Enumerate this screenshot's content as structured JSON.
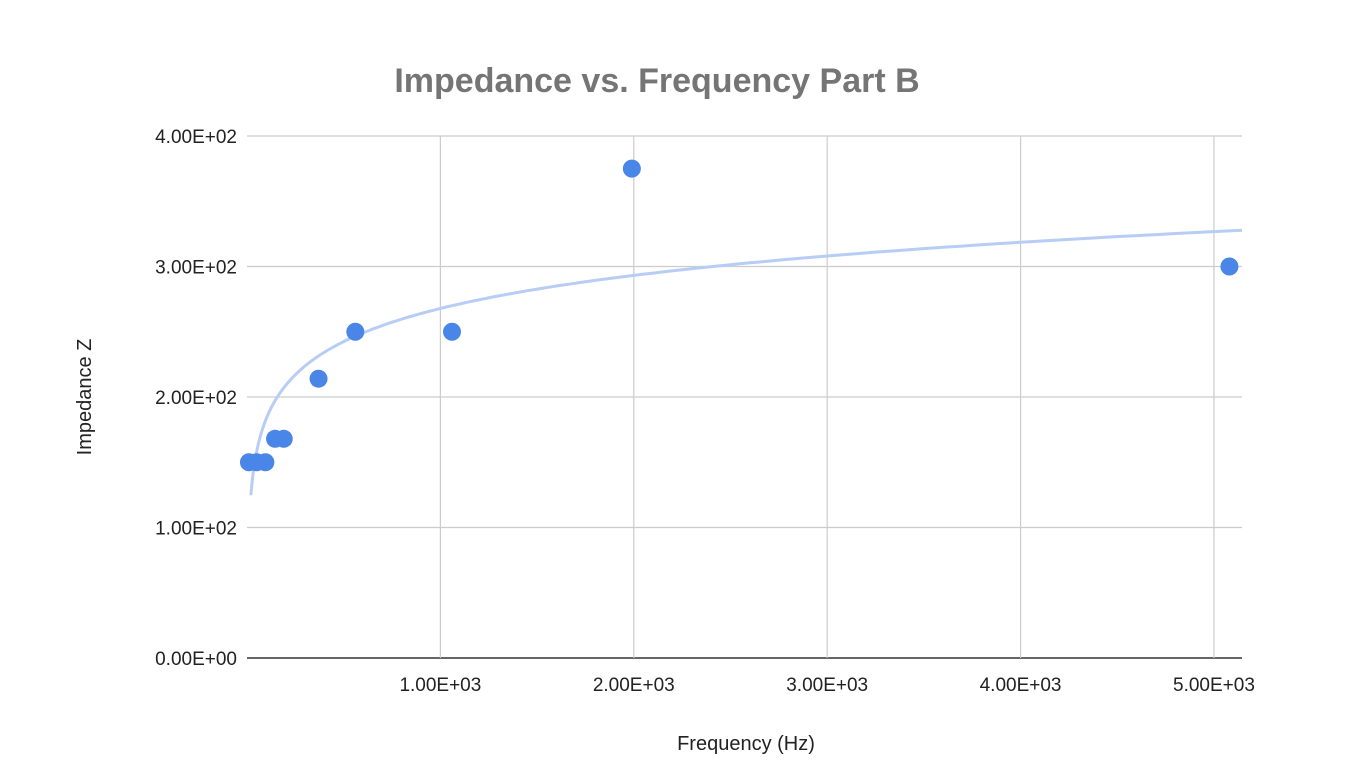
{
  "chart_data": {
    "type": "scatter",
    "title": "Impedance vs. Frequency Part B",
    "xlabel": "Frequency (Hz)",
    "ylabel": "Impedance Z",
    "xlim": [
      0,
      5145
    ],
    "ylim": [
      0,
      400
    ],
    "grid": true,
    "xticks": [
      {
        "v": 1000,
        "label": "1.00E+03"
      },
      {
        "v": 2000,
        "label": "2.00E+03"
      },
      {
        "v": 3000,
        "label": "3.00E+03"
      },
      {
        "v": 4000,
        "label": "4.00E+03"
      },
      {
        "v": 5000,
        "label": "5.00E+03"
      }
    ],
    "yticks": [
      {
        "v": 0,
        "label": "0.00E+00"
      },
      {
        "v": 100,
        "label": "1.00E+02"
      },
      {
        "v": 200,
        "label": "2.00E+02"
      },
      {
        "v": 300,
        "label": "3.00E+02"
      },
      {
        "v": 400,
        "label": "4.00E+02"
      }
    ],
    "series": [
      {
        "name": "Impedance Z",
        "color": "#4a86e8",
        "points": [
          [
            10,
            150
          ],
          [
            50,
            150
          ],
          [
            95,
            150
          ],
          [
            145,
            168
          ],
          [
            190,
            168
          ],
          [
            370,
            214
          ],
          [
            560,
            250
          ],
          [
            1060,
            250
          ],
          [
            1990,
            375
          ],
          [
            5080,
            300
          ]
        ]
      }
    ],
    "trendline": {
      "type": "logarithmic",
      "color": "#b7cdf5",
      "a": 36.6,
      "b": 15,
      "xrange": [
        20,
        5145
      ]
    }
  }
}
